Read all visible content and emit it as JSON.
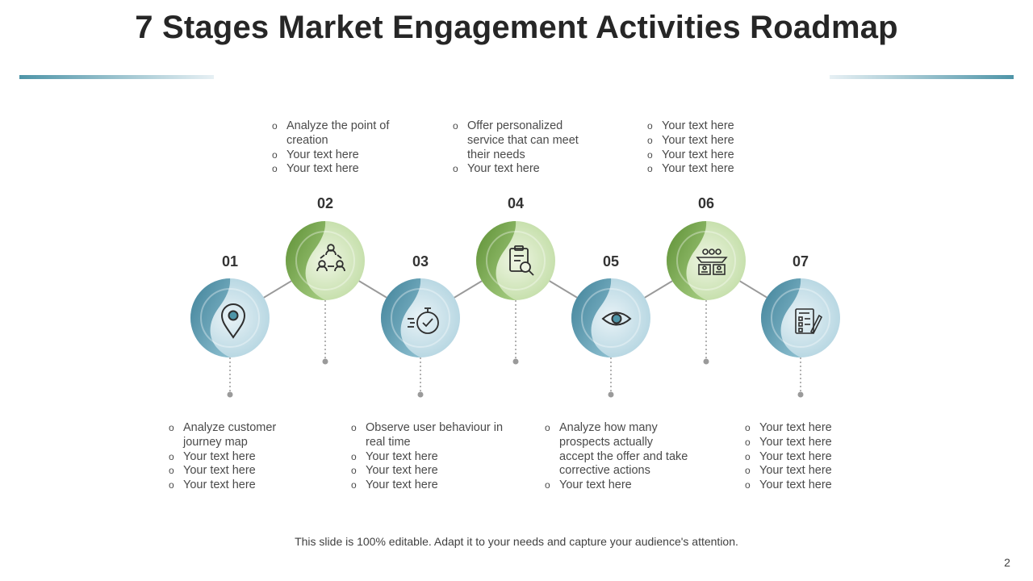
{
  "title": "7 Stages Market Engagement Activities Roadmap",
  "colors": {
    "blue": "#4e95a8",
    "green": "#76a84a"
  },
  "stages": [
    {
      "number": "01",
      "icon": "location-pin-icon",
      "theme": "blue",
      "bullets": [
        "Analyze customer journey map",
        "Your text here",
        "Your text here",
        "Your text here"
      ]
    },
    {
      "number": "02",
      "icon": "team-network-icon",
      "theme": "green",
      "bullets": [
        "Analyze the point of creation",
        "Your text here",
        "Your text here"
      ]
    },
    {
      "number": "03",
      "icon": "stopwatch-check-icon",
      "theme": "blue",
      "bullets": [
        "Observe user behaviour in  real time",
        "Your text here",
        "Your text here",
        "Your text here"
      ]
    },
    {
      "number": "04",
      "icon": "clipboard-search-icon",
      "theme": "green",
      "bullets": [
        "Offer personalized service that can meet their needs",
        "Your text here"
      ]
    },
    {
      "number": "05",
      "icon": "eye-icon",
      "theme": "blue",
      "bullets": [
        "Analyze how many prospects actually accept the offer and take corrective actions",
        "Your text here"
      ]
    },
    {
      "number": "06",
      "icon": "audience-panel-icon",
      "theme": "green",
      "bullets": [
        "Your text here",
        "Your text here",
        "Your text here",
        "Your text here"
      ]
    },
    {
      "number": "07",
      "icon": "checklist-document-icon",
      "theme": "blue",
      "bullets": [
        "Your text here",
        "Your text here",
        "Your text here",
        "Your text here",
        "Your text here"
      ]
    }
  ],
  "footer": "This slide is 100% editable. Adapt it to your needs and capture your audience's attention.",
  "page_number": "2"
}
